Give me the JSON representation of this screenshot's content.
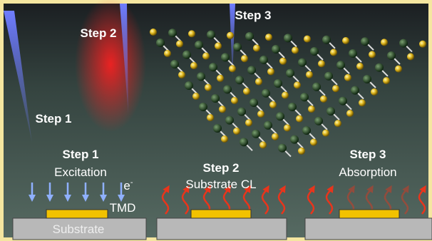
{
  "render": {
    "step3": "Step 3",
    "step2": "Step 2",
    "step1": "Step 1"
  },
  "panels": [
    {
      "step": "Step 1",
      "process": "Excitation",
      "electron": "e",
      "charge": "-",
      "layer": "TMD",
      "substrate": "Substrate"
    },
    {
      "step": "Step 2",
      "process": "Substrate CL"
    },
    {
      "step": "Step 3",
      "process": "Absorption"
    }
  ]
}
